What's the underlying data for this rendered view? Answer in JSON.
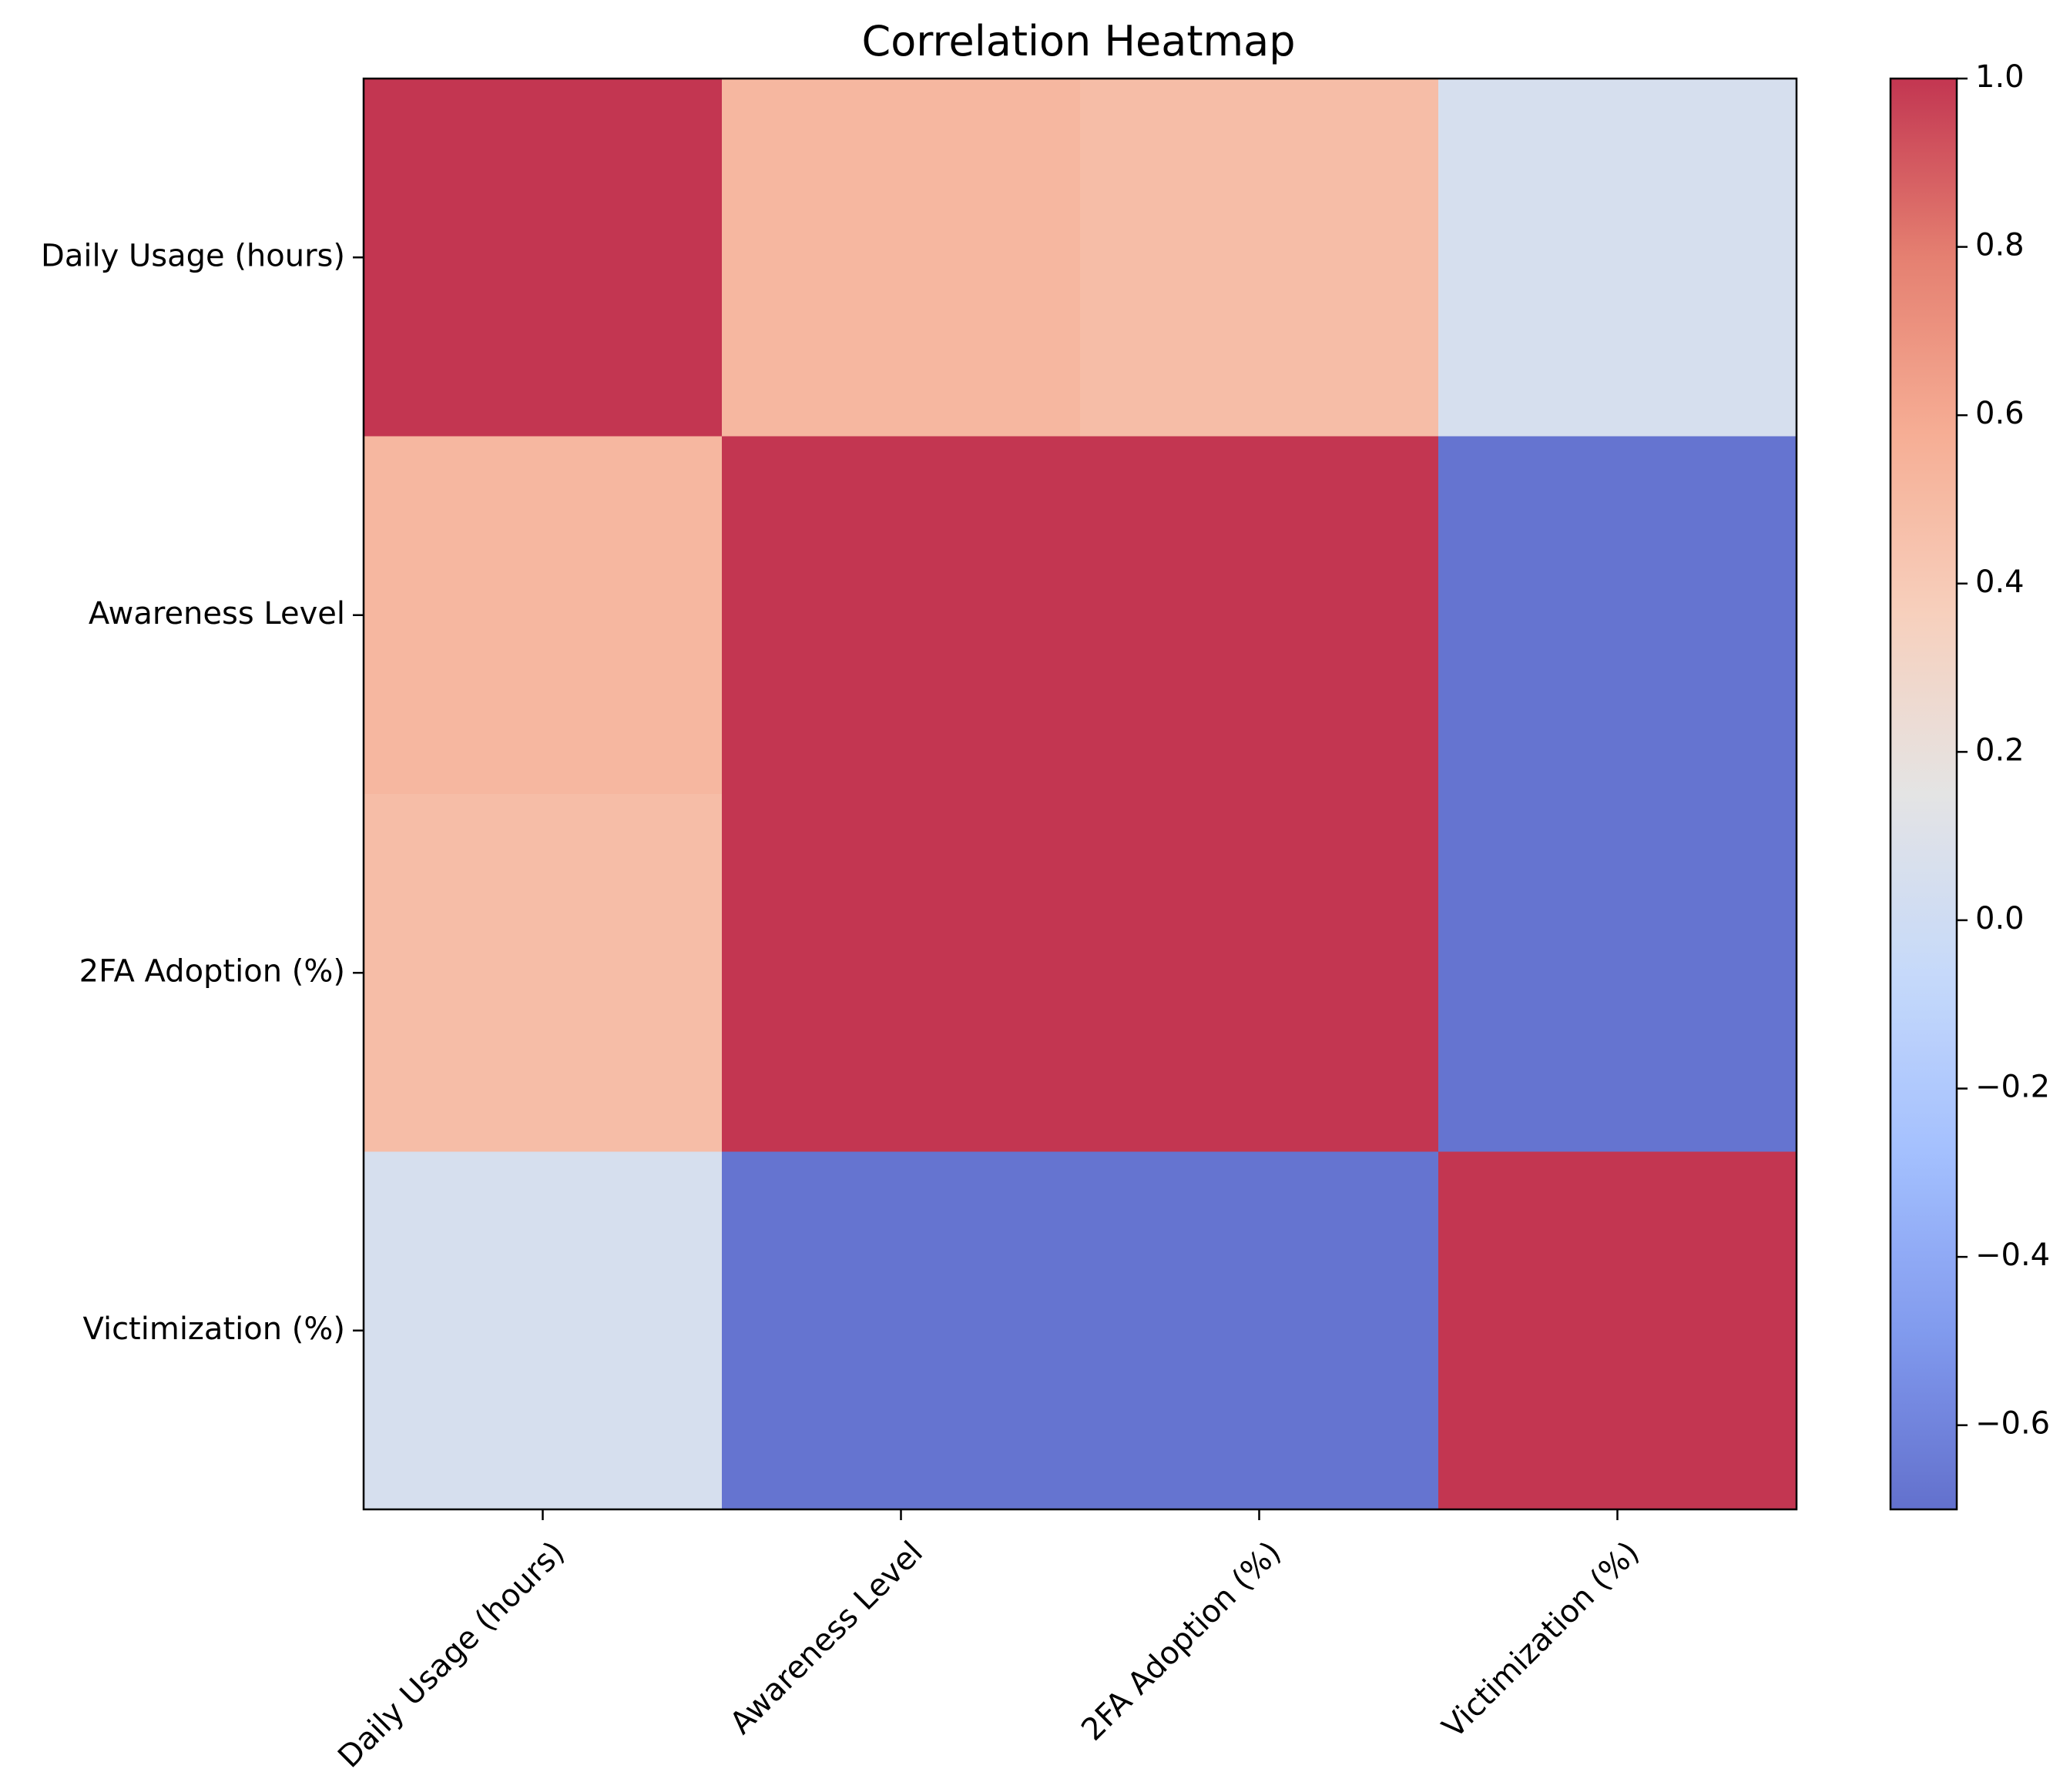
{
  "chart_data": {
    "type": "heatmap",
    "title": "Correlation Heatmap",
    "xlabel": "",
    "ylabel": "",
    "rows": [
      "Daily Usage (hours)",
      "Awareness Level",
      "2FA Adoption (%)",
      "Victimization (%)"
    ],
    "columns": [
      "Daily Usage (hours)",
      "Awareness Level",
      "2FA Adoption (%)",
      "Victimization (%)"
    ],
    "values": [
      [
        1.0,
        0.52,
        0.48,
        0.05
      ],
      [
        0.52,
        1.0,
        1.0,
        -0.68
      ],
      [
        0.48,
        1.0,
        1.0,
        -0.68
      ],
      [
        0.05,
        -0.68,
        -0.68,
        1.0
      ]
    ],
    "colormap": "coolwarm",
    "colorbar": {
      "vmin": -0.7,
      "vmax": 1.0,
      "ticks": [
        1.0,
        0.8,
        0.6,
        0.4,
        0.2,
        0.0,
        -0.2,
        -0.4,
        -0.6
      ],
      "tick_labels": [
        "1.0",
        "0.8",
        "0.6",
        "0.4",
        "0.2",
        "0.0",
        "−0.2",
        "−0.4",
        "−0.6"
      ]
    },
    "grid": false,
    "annotations": false
  }
}
